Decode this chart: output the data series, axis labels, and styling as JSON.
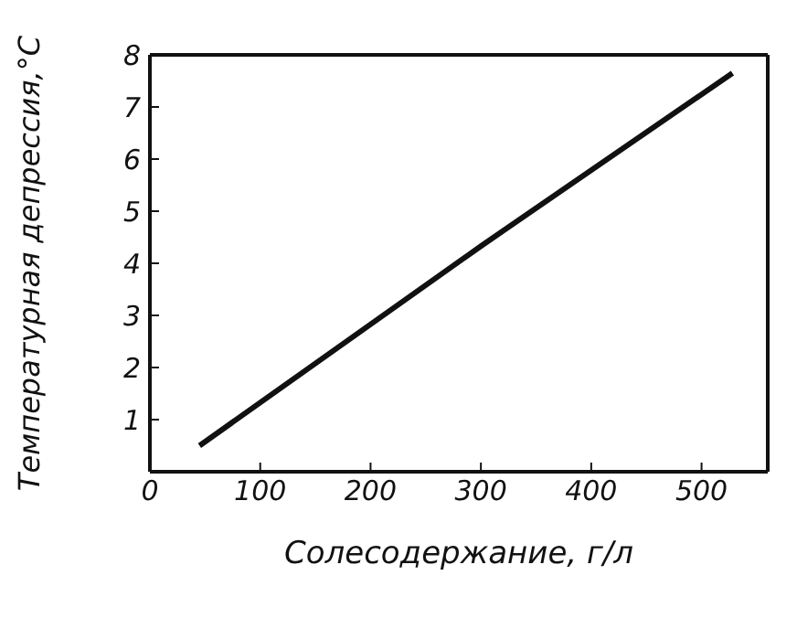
{
  "chart_data": {
    "type": "line",
    "xlabel": "Солесодержание, г/л",
    "ylabel": "Температурная депрессия,°C",
    "x": [
      45,
      300,
      528
    ],
    "series": [
      {
        "color": "#111111",
        "values": [
          0.5,
          4.33,
          7.65
        ]
      }
    ],
    "xlim": [
      0,
      560
    ],
    "xticks": [
      0,
      100,
      200,
      300,
      400,
      500
    ],
    "ylim": [
      0,
      8
    ],
    "yticks": [
      {
        "value": 0,
        "label": null
      },
      1,
      2,
      3,
      4,
      5,
      6,
      7,
      8
    ],
    "grid": false,
    "marker": "none",
    "line_style": "solid"
  }
}
